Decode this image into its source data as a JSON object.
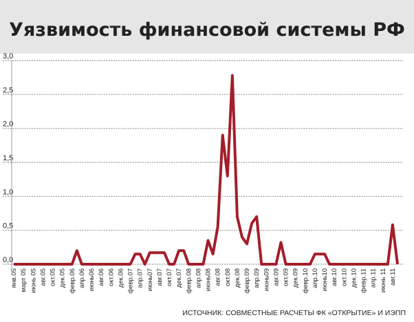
{
  "chart_data": {
    "type": "line",
    "title": "Уязвимость финансовой системы РФ",
    "source": "ИСТОЧНИК: СОВМЕСТНЫЕ РАСЧЕТЫ ФК «ОТКРЫТИЕ» И ИЭПП",
    "categories": [
      "янв.05",
      null,
      "март 05",
      null,
      "июнь 05",
      null,
      "авг.05",
      null,
      "окт.05",
      null,
      "дек.05",
      null,
      "февр.06",
      null,
      "апр.06",
      null,
      "июнь06",
      null,
      "авг.06",
      null,
      "окт.06",
      null,
      "дек.06",
      null,
      "февр.07",
      null,
      "апр.07",
      null,
      "июнь07",
      null,
      "авг.07",
      null,
      "окт.07",
      null,
      "дек.07",
      null,
      "февр.08",
      null,
      "апр.08",
      null,
      "июнь08",
      null,
      "авг.08",
      null,
      "окт.08",
      null,
      "дек.08",
      null,
      "февр.09",
      null,
      "апр.09",
      null,
      "июнь09",
      null,
      "авг.09",
      null,
      "окт.09",
      null,
      "дек.09",
      null,
      "февр.10",
      null,
      "апр.10",
      null,
      "июнь10",
      null,
      "авг.10",
      null,
      "окт.10",
      null,
      "дек.10",
      null,
      "февр.11",
      null,
      "апр.11",
      null,
      "июнь 11",
      null,
      "авг.11",
      null
    ],
    "series": [
      {
        "color": "#a31e2a",
        "values": [
          0,
          0,
          0,
          0,
          0,
          0,
          0,
          0,
          0,
          0,
          0,
          0,
          0,
          0.2,
          0,
          0,
          0,
          0,
          0,
          0,
          0,
          0,
          0,
          0,
          0,
          0.15,
          0.15,
          0,
          0.17,
          0.17,
          0.17,
          0.17,
          0,
          0,
          0.2,
          0.2,
          0,
          0,
          0,
          0,
          0.35,
          0.15,
          0.55,
          1.9,
          1.3,
          2.78,
          0.7,
          0.4,
          0.3,
          0.6,
          0.7,
          0,
          0,
          0,
          0,
          0.32,
          0,
          0,
          0,
          0,
          0,
          0,
          0.15,
          0.15,
          0.15,
          0,
          0,
          0,
          0,
          0,
          0,
          0,
          0,
          0,
          0,
          0,
          0,
          0,
          0.58,
          0
        ]
      }
    ],
    "ylim": [
      0,
      3
    ],
    "yticks": [
      {
        "value": 0,
        "label": "0,0"
      },
      {
        "value": 0.5,
        "label": "0,5"
      },
      {
        "value": 1,
        "label": "1,0"
      },
      {
        "value": 1.5,
        "label": "1,5"
      },
      {
        "value": 2,
        "label": "2,0"
      },
      {
        "value": 2.5,
        "label": "2,5"
      },
      {
        "value": 3,
        "label": "3,0"
      }
    ],
    "grid": true
  }
}
